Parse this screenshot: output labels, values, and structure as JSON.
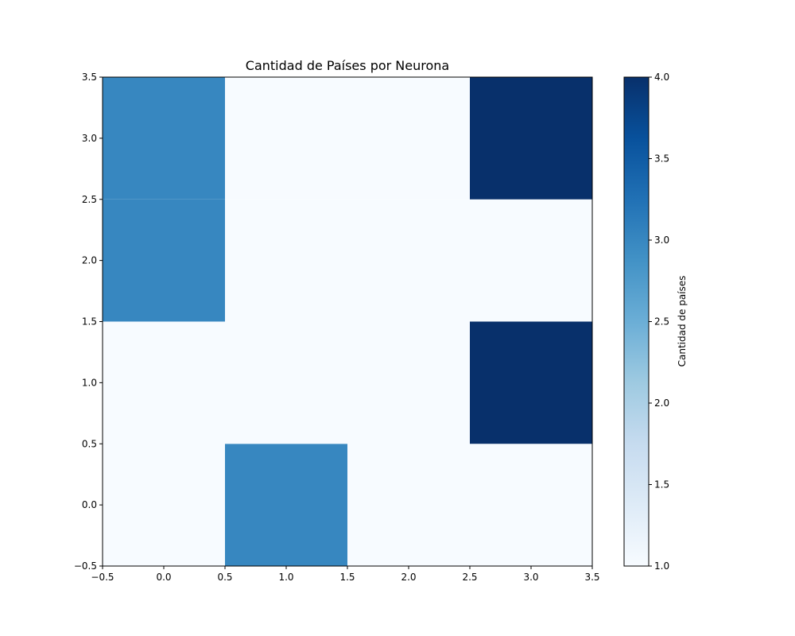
{
  "chart_data": {
    "type": "heatmap",
    "title": "Cantidad de Países por Neurona",
    "xlabel": "",
    "ylabel": "",
    "grid": false,
    "xlim": [
      -0.5,
      3.5
    ],
    "ylim": [
      -0.5,
      3.5
    ],
    "x_ticks": [
      -0.5,
      0.0,
      0.5,
      1.0,
      1.5,
      2.0,
      2.5,
      3.0,
      3.5
    ],
    "x_tick_labels": [
      "−0.5",
      "0.0",
      "0.5",
      "1.0",
      "1.5",
      "2.0",
      "2.5",
      "3.0",
      "3.5"
    ],
    "y_ticks": [
      -0.5,
      0.0,
      0.5,
      1.0,
      1.5,
      2.0,
      2.5,
      3.0,
      3.5
    ],
    "y_tick_labels": [
      "−0.5",
      "0.0",
      "0.5",
      "1.0",
      "1.5",
      "2.0",
      "2.5",
      "3.0",
      "3.5"
    ],
    "rows_bottom_to_top": [
      [
        1,
        3,
        1,
        1
      ],
      [
        1,
        1,
        1,
        4
      ],
      [
        3,
        1,
        1,
        1
      ],
      [
        3,
        1,
        1,
        4
      ]
    ],
    "colormap": "Blues",
    "colorbar": {
      "label": "Cantidad de países",
      "min": 1.0,
      "max": 4.0,
      "ticks": [
        1.0,
        1.5,
        2.0,
        2.5,
        3.0,
        3.5,
        4.0
      ],
      "tick_labels": [
        "1.0",
        "1.5",
        "2.0",
        "2.5",
        "3.0",
        "3.5",
        "4.0"
      ]
    },
    "value_colors": {
      "1": "#f7fbff",
      "3": "#3787c0",
      "4": "#08306b"
    }
  }
}
